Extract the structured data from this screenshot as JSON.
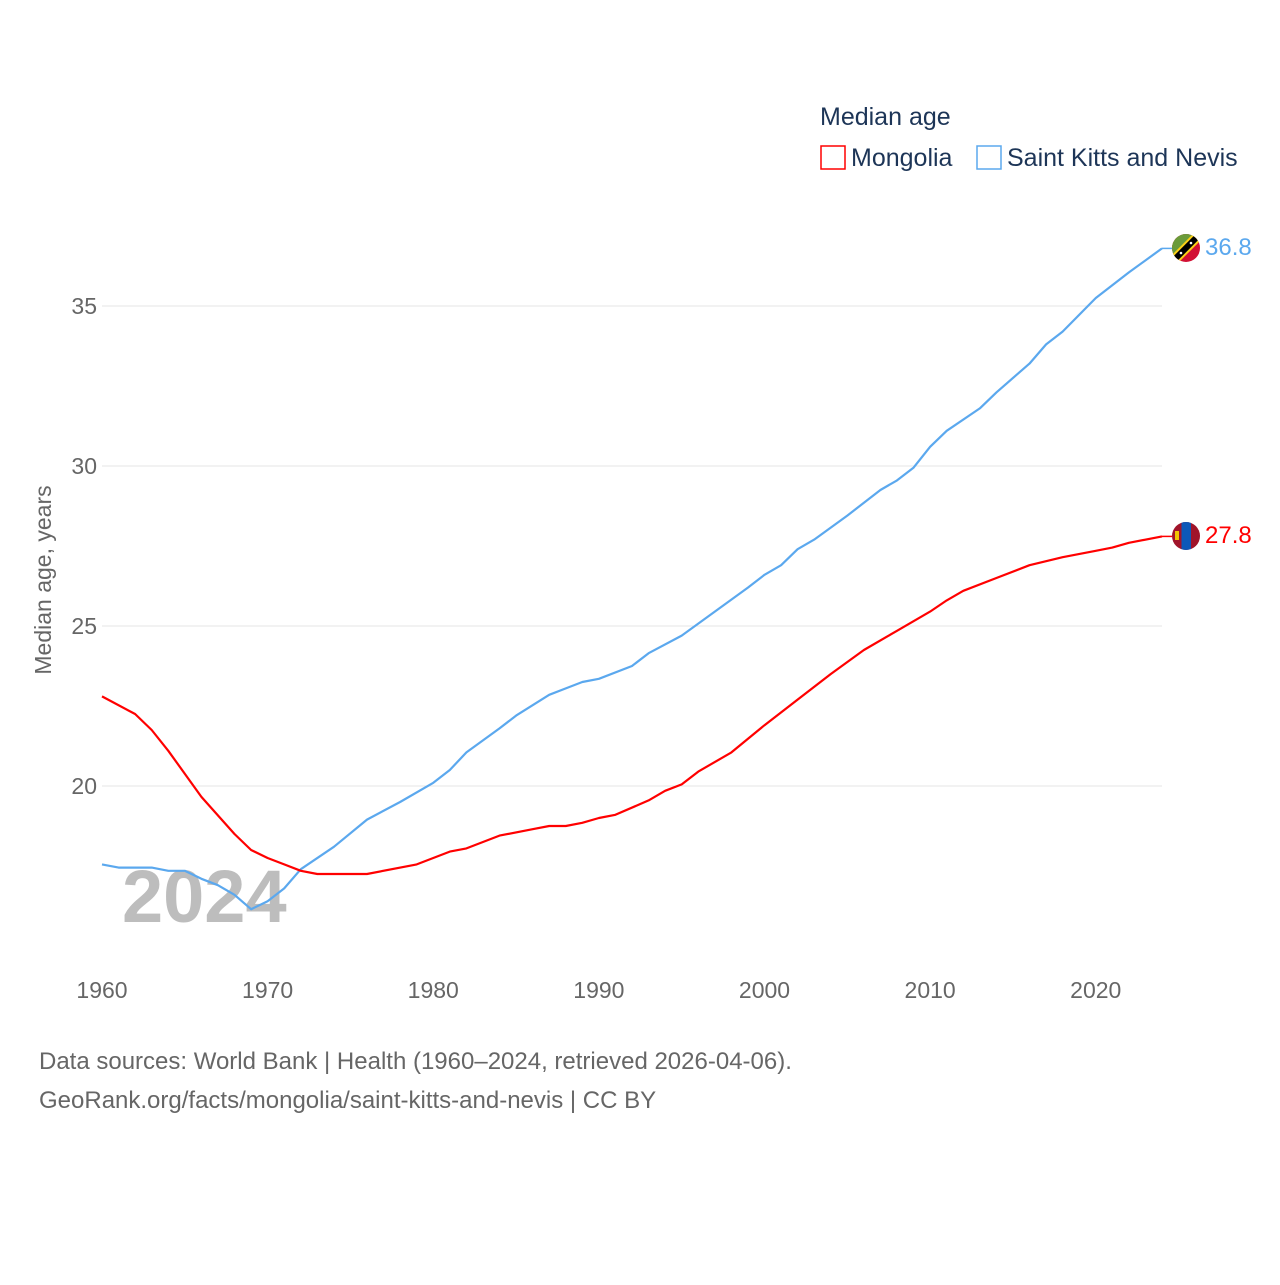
{
  "chart_data": {
    "type": "line",
    "title": "",
    "xlabel": "",
    "ylabel": "Median age, years",
    "xlim": [
      1960,
      2024
    ],
    "ylim": [
      15.5,
      36.8
    ],
    "xticks": [
      1960,
      1970,
      1980,
      1990,
      2000,
      2010,
      2020
    ],
    "yticks": [
      20,
      25,
      30,
      35
    ],
    "grid": true,
    "legend_title": "Median age",
    "legend_position": "top-right",
    "year_watermark": "2024",
    "series": [
      {
        "name": "Mongolia",
        "color": "#ff0000",
        "end_label": "27.8",
        "flag": "mongolia-flag",
        "points": [
          [
            1960,
            22.8
          ],
          [
            1962,
            22.25
          ],
          [
            1963,
            21.75
          ],
          [
            1964,
            21.1
          ],
          [
            1966,
            19.66
          ],
          [
            1968,
            18.5
          ],
          [
            1969,
            18.0
          ],
          [
            1970,
            17.75
          ],
          [
            1971,
            17.55
          ],
          [
            1972,
            17.35
          ],
          [
            1973,
            17.25
          ],
          [
            1976,
            17.25
          ],
          [
            1979,
            17.55
          ],
          [
            1981,
            17.95
          ],
          [
            1982,
            18.05
          ],
          [
            1984,
            18.45
          ],
          [
            1986,
            18.65
          ],
          [
            1987,
            18.75
          ],
          [
            1988,
            18.75
          ],
          [
            1989,
            18.85
          ],
          [
            1990,
            19.0
          ],
          [
            1991,
            19.1
          ],
          [
            1993,
            19.55
          ],
          [
            1994,
            19.85
          ],
          [
            1995,
            20.05
          ],
          [
            1996,
            20.45
          ],
          [
            1998,
            21.05
          ],
          [
            2000,
            21.9
          ],
          [
            2002,
            22.7
          ],
          [
            2004,
            23.5
          ],
          [
            2006,
            24.25
          ],
          [
            2008,
            24.85
          ],
          [
            2010,
            25.45
          ],
          [
            2011,
            25.8
          ],
          [
            2012,
            26.1
          ],
          [
            2014,
            26.5
          ],
          [
            2016,
            26.9
          ],
          [
            2018,
            27.15
          ],
          [
            2020,
            27.35
          ],
          [
            2021,
            27.45
          ],
          [
            2022,
            27.6
          ],
          [
            2024,
            27.8
          ]
        ]
      },
      {
        "name": "Saint Kitts and Nevis",
        "color": "#5ba8ee",
        "end_label": "36.8",
        "flag": "saint-kitts-and-nevis-flag",
        "points": [
          [
            1960,
            17.55
          ],
          [
            1961,
            17.45
          ],
          [
            1963,
            17.45
          ],
          [
            1964,
            17.35
          ],
          [
            1965,
            17.35
          ],
          [
            1966,
            17.1
          ],
          [
            1967,
            16.9
          ],
          [
            1968,
            16.6
          ],
          [
            1969,
            16.15
          ],
          [
            1970,
            16.4
          ],
          [
            1971,
            16.8
          ],
          [
            1972,
            17.4
          ],
          [
            1974,
            18.1
          ],
          [
            1976,
            18.95
          ],
          [
            1978,
            19.5
          ],
          [
            1980,
            20.1
          ],
          [
            1981,
            20.5
          ],
          [
            1982,
            21.05
          ],
          [
            1984,
            21.8
          ],
          [
            1985,
            22.2
          ],
          [
            1987,
            22.85
          ],
          [
            1988,
            23.05
          ],
          [
            1989,
            23.25
          ],
          [
            1990,
            23.35
          ],
          [
            1992,
            23.75
          ],
          [
            1993,
            24.15
          ],
          [
            1995,
            24.7
          ],
          [
            1997,
            25.45
          ],
          [
            1999,
            26.2
          ],
          [
            2000,
            26.6
          ],
          [
            2001,
            26.9
          ],
          [
            2002,
            27.4
          ],
          [
            2003,
            27.7
          ],
          [
            2005,
            28.45
          ],
          [
            2007,
            29.25
          ],
          [
            2008,
            29.55
          ],
          [
            2009,
            29.95
          ],
          [
            2010,
            30.6
          ],
          [
            2011,
            31.1
          ],
          [
            2013,
            31.8
          ],
          [
            2014,
            32.3
          ],
          [
            2016,
            33.2
          ],
          [
            2017,
            33.8
          ],
          [
            2018,
            34.2
          ],
          [
            2020,
            35.25
          ],
          [
            2022,
            36.05
          ],
          [
            2024,
            36.8
          ]
        ]
      }
    ]
  },
  "footer": {
    "line1": "Data sources: World Bank | Health (1960–2024, retrieved 2026-04-06).",
    "line2": "GeoRank.org/facts/mongolia/saint-kitts-and-nevis | CC BY"
  }
}
